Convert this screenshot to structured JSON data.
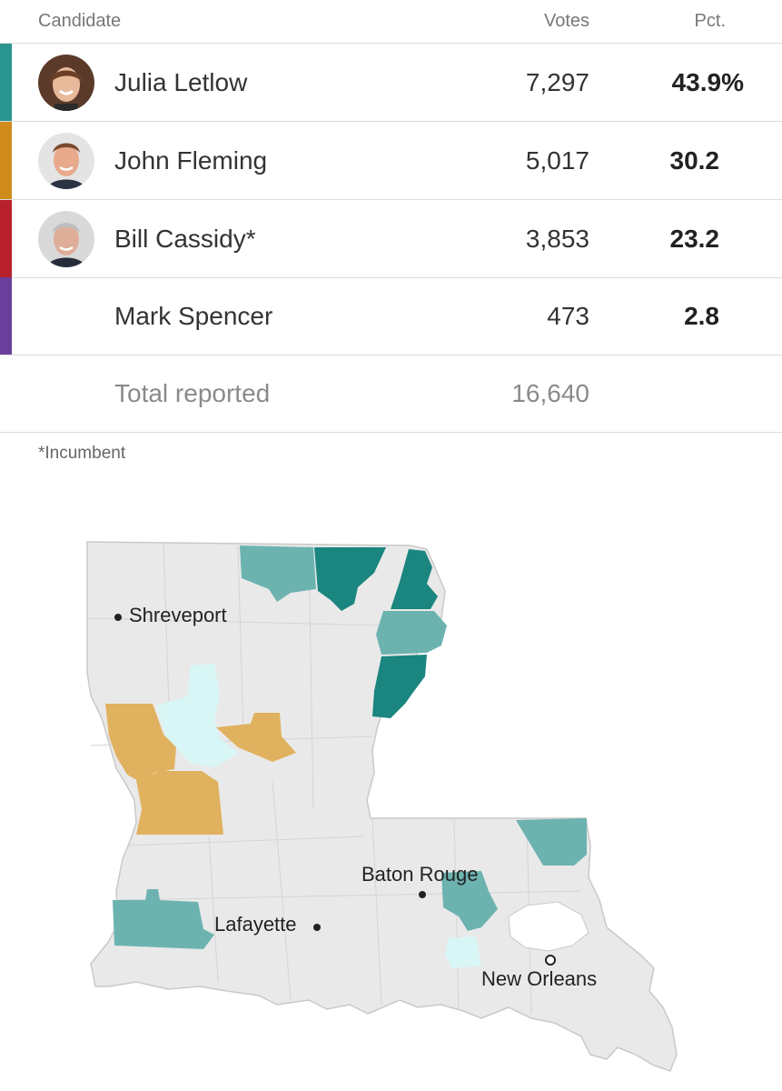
{
  "header": {
    "candidate": "Candidate",
    "votes": "Votes",
    "pct": "Pct."
  },
  "candidates": [
    {
      "name": "Julia Letlow",
      "votes": "7,297",
      "pct": "43.9%",
      "color": "#2a9491"
    },
    {
      "name": "John Fleming",
      "votes": "5,017",
      "pct": "30.2",
      "color": "#d08c1a"
    },
    {
      "name": "Bill Cassidy*",
      "votes": "3,853",
      "pct": "23.2",
      "color": "#b8202b"
    },
    {
      "name": "Mark Spencer",
      "votes": "473",
      "pct": "2.8",
      "color": "#6a3f9b"
    }
  ],
  "total": {
    "label": "Total reported",
    "votes": "16,640"
  },
  "footnote": "*Incumbent",
  "map": {
    "cities": {
      "shreveport": "Shreveport",
      "baton_rouge": "Baton Rouge",
      "lafayette": "Lafayette",
      "new_orleans": "New Orleans"
    },
    "colors": {
      "letlow_strong": "#1b8580",
      "letlow_light": "#6cb3b0",
      "fleming": "#e0b15e",
      "cassidy_light": "#d8f6f6",
      "no_data": "#e9e9e9"
    }
  }
}
